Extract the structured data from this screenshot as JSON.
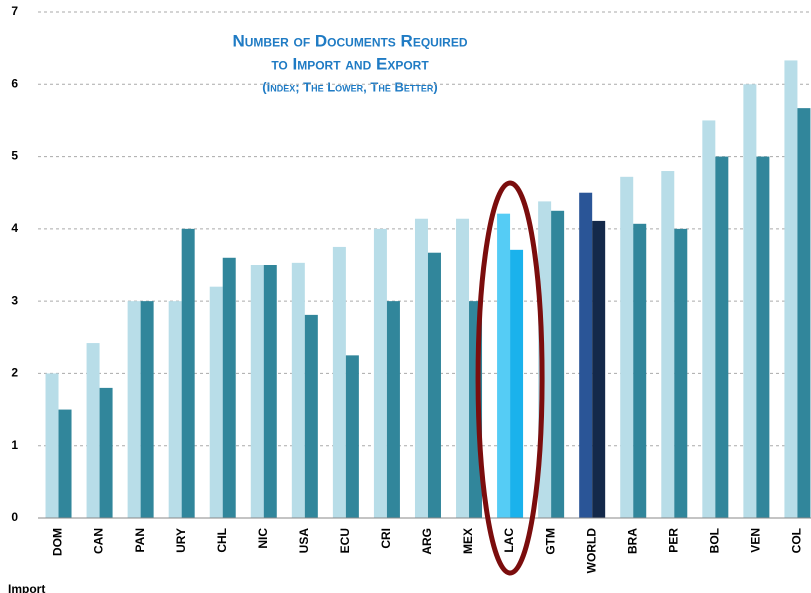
{
  "chart_data": {
    "type": "bar",
    "title": [
      "Number of Documents Required",
      "to Import and Export"
    ],
    "subtitle": "(Index; The Lower, The Better)",
    "categories": [
      "DOM",
      "CAN",
      "PAN",
      "URY",
      "CHL",
      "NIC",
      "USA",
      "ECU",
      "CRI",
      "ARG",
      "MEX",
      "LAC",
      "GTM",
      "WORLD",
      "BRA",
      "PER",
      "BOL",
      "VEN",
      "COL"
    ],
    "series": [
      {
        "name": "Import",
        "color": "#b8dde8",
        "colors": [
          "#b8dde8",
          "#b8dde8",
          "#b8dde8",
          "#b8dde8",
          "#b8dde8",
          "#b8dde8",
          "#b8dde8",
          "#b8dde8",
          "#b8dde8",
          "#b8dde8",
          "#b8dde8",
          "#55ccf5",
          "#b8dde8",
          "#2a5597",
          "#b8dde8",
          "#b8dde8",
          "#b8dde8",
          "#b8dde8",
          "#b8dde8"
        ],
        "values": [
          2.0,
          2.42,
          3.0,
          3.0,
          3.2,
          3.5,
          3.53,
          3.75,
          4.0,
          4.14,
          4.14,
          4.21,
          4.38,
          4.5,
          4.72,
          4.8,
          5.5,
          6.0,
          6.33
        ]
      },
      {
        "color": "#31869b",
        "colors": [
          "#31869b",
          "#31869b",
          "#31869b",
          "#31869b",
          "#31869b",
          "#31869b",
          "#31869b",
          "#31869b",
          "#31869b",
          "#31869b",
          "#31869b",
          "#1ab2ec",
          "#31869b",
          "#14294a",
          "#31869b",
          "#31869b",
          "#31869b",
          "#31869b",
          "#31869b"
        ],
        "values": [
          1.5,
          1.8,
          3.0,
          4.0,
          3.6,
          3.5,
          2.81,
          2.25,
          3.0,
          3.67,
          3.0,
          3.71,
          4.25,
          4.11,
          4.07,
          4.0,
          5.0,
          5.0,
          5.67
        ]
      }
    ],
    "ylim": [
      0,
      7
    ],
    "yticks": [
      0,
      1,
      2,
      3,
      4,
      5,
      6,
      7
    ],
    "grid": true
  }
}
